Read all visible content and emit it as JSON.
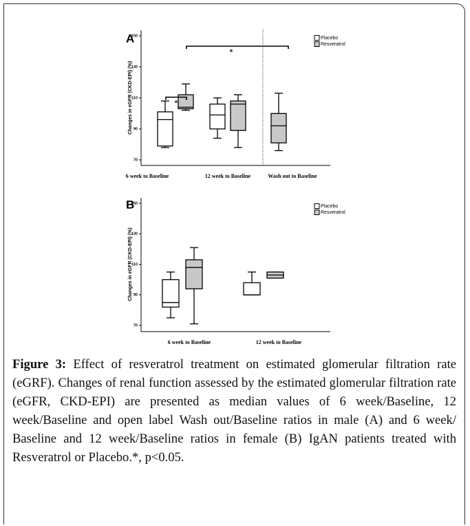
{
  "chart_data": [
    {
      "type": "box",
      "panel_label": "A",
      "y_label": "Changes in eGFR (CKD-EPI) (%)",
      "categories": [
        "6 week to Baseline",
        "12 week to Baseline",
        "Wash out to Baseline"
      ],
      "series": [
        {
          "name": "Placebo",
          "color": "#ffffff",
          "values": [
            {
              "min": 78,
              "q1": 79,
              "median": 96,
              "q3": 101,
              "max": 108
            },
            {
              "min": 84,
              "q1": 90,
              "median": 99,
              "q3": 106,
              "max": 110
            },
            null
          ]
        },
        {
          "name": "Resveratrol",
          "color": "#c8c8c8",
          "values": [
            {
              "min": 102,
              "q1": 103,
              "median": 104,
              "q3": 112,
              "max": 119
            },
            {
              "min": 78,
              "q1": 89,
              "median": 106,
              "q3": 108,
              "max": 112
            },
            {
              "min": 76,
              "q1": 81,
              "median": 92,
              "q3": 100,
              "max": 113
            }
          ]
        }
      ],
      "annotations": [
        "*",
        "*"
      ],
      "ylim": [
        70,
        150
      ],
      "yticks": [
        70,
        90,
        110,
        130,
        150
      ],
      "legend": "top-right"
    },
    {
      "type": "box",
      "panel_label": "B",
      "y_label": "Changes in eGFR (CKD-EPI) (%)",
      "categories": [
        "6 week to Baseline",
        "12 week to Baseline"
      ],
      "series": [
        {
          "name": "Placebo",
          "color": "#ffffff",
          "values": [
            {
              "min": 75,
              "q1": 82,
              "median": 85,
              "q3": 100,
              "max": 105
            },
            {
              "min": 90,
              "q1": 90,
              "median": 90,
              "q3": 98,
              "max": 105
            }
          ]
        },
        {
          "name": "Resveratrol",
          "color": "#c8c8c8",
          "values": [
            {
              "min": 71,
              "q1": 94,
              "median": 108,
              "q3": 113,
              "max": 121
            },
            {
              "min": 101,
              "q1": 101,
              "median": 103,
              "q3": 105,
              "max": 105
            }
          ]
        }
      ],
      "ylim": [
        70,
        150
      ],
      "yticks": [
        70,
        90,
        110,
        130,
        150
      ],
      "legend": "top-right"
    }
  ],
  "caption": {
    "label": "Figure 3:",
    "text": "Effect of resveratrol treatment on estimated glomerular filtration rate (eGRF). Changes of renal function assessed by the estimated glomerular filtration rate (eGFR, CKD-EPI) are presented as median values of 6 week/Baseline, 12 week/Baseline and open label Wash out/Baseline ratios in male (A) and 6 week/ Baseline and 12 week/Baseline ratios in female (B) IgAN patients treated with Resveratrol or Placebo.*, p<0.05."
  }
}
